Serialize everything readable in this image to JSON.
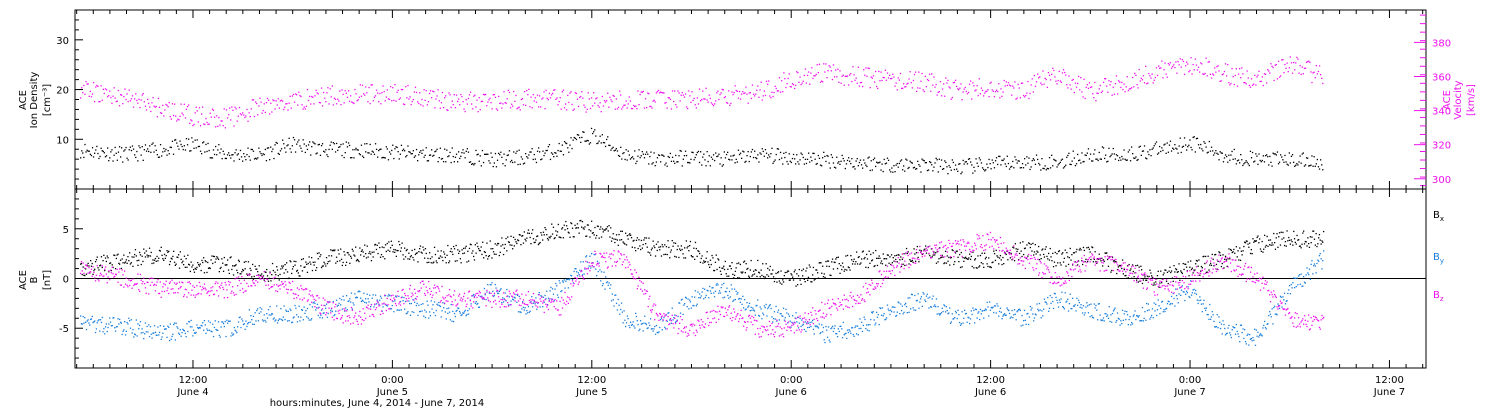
{
  "colors": {
    "black": "#000000",
    "magenta": "#ee11ee",
    "blue": "#1a7fdc"
  },
  "xaxis": {
    "title": "hours:minutes, June  4, 2014 - June  7, 2014",
    "ticks": [
      {
        "hm": "12:00",
        "day": "June 4",
        "t": 12
      },
      {
        "hm": "0:00",
        "day": "June 5",
        "t": 24
      },
      {
        "hm": "12:00",
        "day": "June 5",
        "t": 36
      },
      {
        "hm": "0:00",
        "day": "June 6",
        "t": 48
      },
      {
        "hm": "12:00",
        "day": "June 6",
        "t": 60
      },
      {
        "hm": "0:00",
        "day": "June 7",
        "t": 72
      },
      {
        "hm": "12:00",
        "day": "June 7",
        "t": 84
      }
    ]
  },
  "chart_data": [
    {
      "type": "scatter",
      "panel": "top",
      "x_unit": "hours since 0:00 June 4, 2014",
      "xlim": [
        4.9,
        86.2
      ],
      "left_axis": {
        "label_lines": [
          "ACE",
          "Ion Density",
          "[cm⁻³]"
        ],
        "ylim": [
          0,
          36
        ],
        "ticks": [
          10,
          20,
          30
        ]
      },
      "right_axis": {
        "label_lines": [
          "ACE",
          "Velocity",
          "[km/s]"
        ],
        "ylim": [
          294,
          399
        ],
        "ticks": [
          300,
          320,
          340,
          360,
          380
        ]
      },
      "series": [
        {
          "name": "Ion Density",
          "axis": "left",
          "color": "#000000",
          "x": [
            5.2,
            8,
            10,
            12,
            14,
            16,
            18,
            20,
            22,
            24,
            26,
            28,
            30,
            32,
            34,
            36,
            38,
            40,
            42,
            44,
            46,
            48,
            50,
            52,
            54,
            56,
            58,
            60,
            62,
            64,
            66,
            68,
            70,
            72,
            74,
            76,
            78,
            80
          ],
          "y": [
            8,
            7,
            8,
            9,
            7,
            7,
            9,
            8,
            8,
            7.5,
            7,
            7,
            6,
            6.5,
            8,
            11,
            7,
            6,
            6.5,
            6,
            7,
            6.5,
            6,
            5.5,
            5,
            5,
            4.5,
            5,
            5.5,
            5.5,
            7,
            7,
            8,
            9.5,
            7,
            6,
            6,
            5.5
          ]
        },
        {
          "name": "Velocity",
          "axis": "right",
          "color": "#ee11ee",
          "x": [
            5.2,
            8,
            10,
            12,
            14,
            16,
            18,
            20,
            22,
            24,
            26,
            28,
            30,
            32,
            34,
            36,
            38,
            40,
            42,
            44,
            46,
            48,
            50,
            52,
            54,
            56,
            58,
            60,
            62,
            64,
            66,
            68,
            70,
            72,
            74,
            76,
            78,
            80
          ],
          "y": [
            352,
            348,
            342,
            337,
            336,
            342,
            346,
            349,
            350,
            350,
            349,
            345,
            346,
            347,
            347,
            345,
            346,
            347,
            347,
            348,
            351,
            359,
            362,
            360,
            358,
            357,
            352,
            354,
            352,
            362,
            351,
            357,
            363,
            368,
            362,
            358,
            368,
            360
          ]
        }
      ]
    },
    {
      "type": "scatter",
      "panel": "bottom",
      "x_unit": "hours since 0:00 June 4, 2014",
      "xlim": [
        4.9,
        86.2
      ],
      "left_axis": {
        "label_lines": [
          "ACE",
          "B",
          "[nT]"
        ],
        "ylim": [
          -9,
          9
        ],
        "ticks": [
          -5,
          0,
          5
        ]
      },
      "legend_position": "right",
      "series": [
        {
          "name": "Bx",
          "name_main": "B",
          "name_sub": "x",
          "color": "#000000",
          "x": [
            5.2,
            8,
            10,
            12,
            14,
            16,
            18,
            20,
            22,
            24,
            26,
            28,
            30,
            32,
            34,
            36,
            38,
            40,
            42,
            44,
            46,
            48,
            50,
            52,
            54,
            56,
            58,
            60,
            62,
            64,
            66,
            68,
            70,
            72,
            74,
            76,
            78,
            80
          ],
          "y": [
            1,
            2,
            2.5,
            1.5,
            1.5,
            0.5,
            1,
            2,
            2.5,
            3,
            2.5,
            2.5,
            3,
            4,
            5,
            5,
            4,
            3,
            3,
            1,
            1,
            0,
            1,
            2,
            2,
            2.5,
            2,
            2,
            3,
            2,
            2.5,
            1,
            0,
            1,
            2,
            3.5,
            4,
            4
          ]
        },
        {
          "name": "By",
          "name_main": "B",
          "name_sub": "y",
          "color": "#1a7fdc",
          "x": [
            5.2,
            8,
            10,
            12,
            14,
            16,
            18,
            20,
            22,
            24,
            26,
            28,
            30,
            32,
            34,
            36,
            38,
            40,
            42,
            44,
            46,
            48,
            50,
            52,
            54,
            56,
            58,
            60,
            62,
            64,
            66,
            68,
            70,
            72,
            74,
            76,
            78,
            80
          ],
          "y": [
            -4.5,
            -4.8,
            -5.5,
            -5,
            -5,
            -3.5,
            -3.5,
            -3,
            -2,
            -2.5,
            -3,
            -3.5,
            -1,
            -3,
            -1,
            2,
            -4,
            -5,
            -2,
            -1,
            -3,
            -4,
            -5.5,
            -5,
            -3,
            -2,
            -4,
            -3,
            -4,
            -2,
            -3,
            -4,
            -3,
            -1,
            -5,
            -6,
            -1,
            2
          ]
        },
        {
          "name": "Bz",
          "name_main": "B",
          "name_sub": "z",
          "color": "#ee11ee",
          "x": [
            5.2,
            8,
            10,
            12,
            14,
            16,
            18,
            20,
            22,
            24,
            26,
            28,
            30,
            32,
            34,
            36,
            38,
            40,
            42,
            44,
            46,
            48,
            50,
            52,
            54,
            56,
            58,
            60,
            62,
            64,
            66,
            68,
            70,
            72,
            74,
            76,
            78,
            80
          ],
          "y": [
            1,
            0,
            -1,
            -1,
            -1,
            0,
            -1,
            -3,
            -4,
            -2,
            -1,
            -2,
            -2,
            -2,
            -3,
            2,
            2,
            -4,
            -5,
            -3,
            -5,
            -5,
            -3,
            -2,
            1,
            3,
            3,
            4,
            2,
            0,
            2,
            1,
            -1,
            0,
            2,
            0,
            -4,
            -4.5
          ]
        }
      ]
    }
  ]
}
